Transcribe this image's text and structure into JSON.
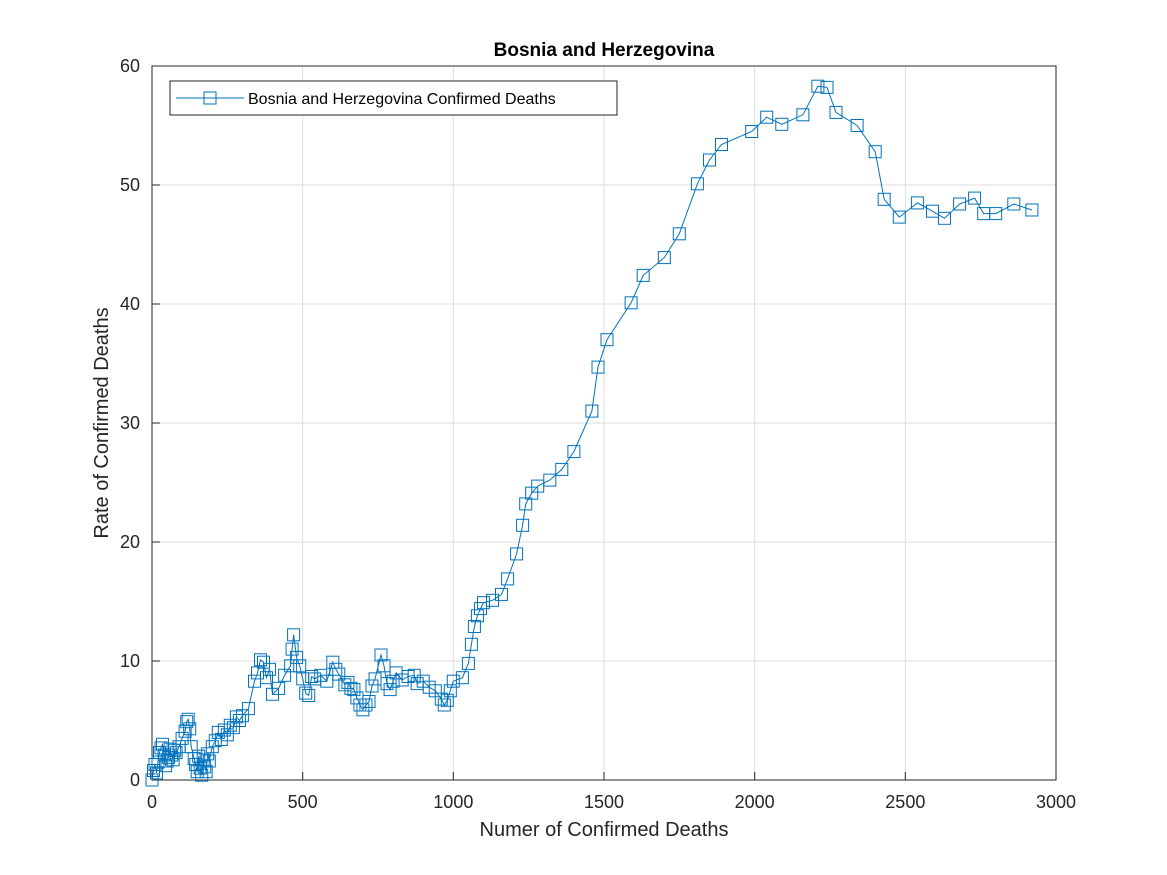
{
  "chart_data": {
    "type": "line",
    "title": "Bosnia and Herzegovina",
    "xlabel": "Numer of Confirmed Deaths",
    "ylabel": "Rate of Confirmed Deaths",
    "xlim": [
      0,
      3000
    ],
    "ylim": [
      0,
      60
    ],
    "xticks": [
      0,
      500,
      1000,
      1500,
      2000,
      2500,
      3000
    ],
    "yticks": [
      0,
      10,
      20,
      30,
      40,
      50,
      60
    ],
    "grid": true,
    "legend_position": "top-left",
    "marker": "square",
    "color": "#0072BD",
    "series": [
      {
        "name": "Bosnia and Herzegovina Confirmed Deaths",
        "x": [
          0,
          5,
          10,
          15,
          20,
          25,
          30,
          35,
          40,
          45,
          50,
          55,
          60,
          65,
          70,
          75,
          80,
          90,
          100,
          110,
          115,
          120,
          125,
          130,
          140,
          145,
          150,
          155,
          160,
          165,
          170,
          175,
          180,
          185,
          190,
          200,
          210,
          220,
          230,
          240,
          250,
          260,
          270,
          280,
          290,
          300,
          320,
          340,
          350,
          360,
          370,
          380,
          390,
          400,
          420,
          440,
          460,
          465,
          470,
          480,
          490,
          500,
          510,
          520,
          530,
          540,
          560,
          580,
          600,
          610,
          620,
          640,
          650,
          660,
          670,
          680,
          690,
          700,
          710,
          720,
          730,
          740,
          760,
          770,
          780,
          790,
          800,
          810,
          830,
          850,
          870,
          880,
          900,
          920,
          940,
          960,
          970,
          980,
          990,
          1000,
          1030,
          1050,
          1060,
          1070,
          1080,
          1090,
          1100,
          1130,
          1160,
          1180,
          1210,
          1230,
          1240,
          1260,
          1280,
          1320,
          1360,
          1400,
          1460,
          1480,
          1510,
          1590,
          1630,
          1700,
          1750,
          1810,
          1850,
          1890,
          1990,
          2040,
          2090,
          2160,
          2210,
          2240,
          2270,
          2340,
          2400,
          2430,
          2480,
          2540,
          2590,
          2630,
          2680,
          2730,
          2760,
          2800,
          2860,
          2920
        ],
        "y": [
          0,
          0.8,
          1.3,
          0.6,
          1.5,
          2.3,
          2.7,
          3.0,
          2.1,
          1.2,
          1.6,
          1.9,
          2.6,
          2.1,
          1.7,
          2.5,
          2.3,
          2.8,
          3.5,
          4.1,
          4.9,
          5.1,
          4.3,
          2.8,
          1.8,
          1.3,
          0.7,
          2.0,
          1.0,
          0.4,
          1.7,
          1.1,
          0.7,
          2.2,
          1.6,
          2.8,
          3.3,
          4.0,
          3.4,
          4.2,
          3.8,
          4.6,
          4.4,
          5.3,
          5.0,
          5.4,
          6.0,
          8.3,
          9.0,
          10.1,
          9.9,
          8.6,
          9.3,
          7.2,
          7.7,
          8.8,
          9.6,
          11.0,
          12.2,
          10.3,
          9.6,
          8.5,
          7.3,
          7.1,
          8.7,
          8.5,
          8.8,
          8.3,
          9.9,
          9.3,
          8.9,
          8.0,
          8.2,
          7.7,
          7.6,
          6.9,
          6.3,
          5.9,
          6.3,
          6.6,
          7.9,
          8.5,
          10.5,
          9.6,
          8.1,
          7.6,
          8.3,
          9.0,
          8.4,
          8.7,
          8.8,
          8.1,
          8.3,
          7.8,
          7.5,
          6.8,
          6.3,
          6.7,
          7.5,
          8.3,
          8.6,
          9.8,
          11.4,
          12.9,
          13.8,
          14.4,
          14.9,
          15.1,
          15.6,
          16.9,
          19.0,
          21.4,
          23.2,
          24.1,
          24.7,
          25.2,
          26.1,
          27.6,
          31.0,
          34.7,
          37.0,
          40.1,
          42.4,
          43.9,
          45.9,
          50.1,
          52.1,
          53.4,
          54.5,
          55.7,
          55.1,
          55.9,
          58.3,
          58.2,
          56.1,
          55.0,
          52.8,
          48.8,
          47.3,
          48.5,
          47.8,
          47.2,
          48.4,
          48.9,
          47.6,
          47.6,
          48.4,
          47.9
        ]
      }
    ]
  }
}
